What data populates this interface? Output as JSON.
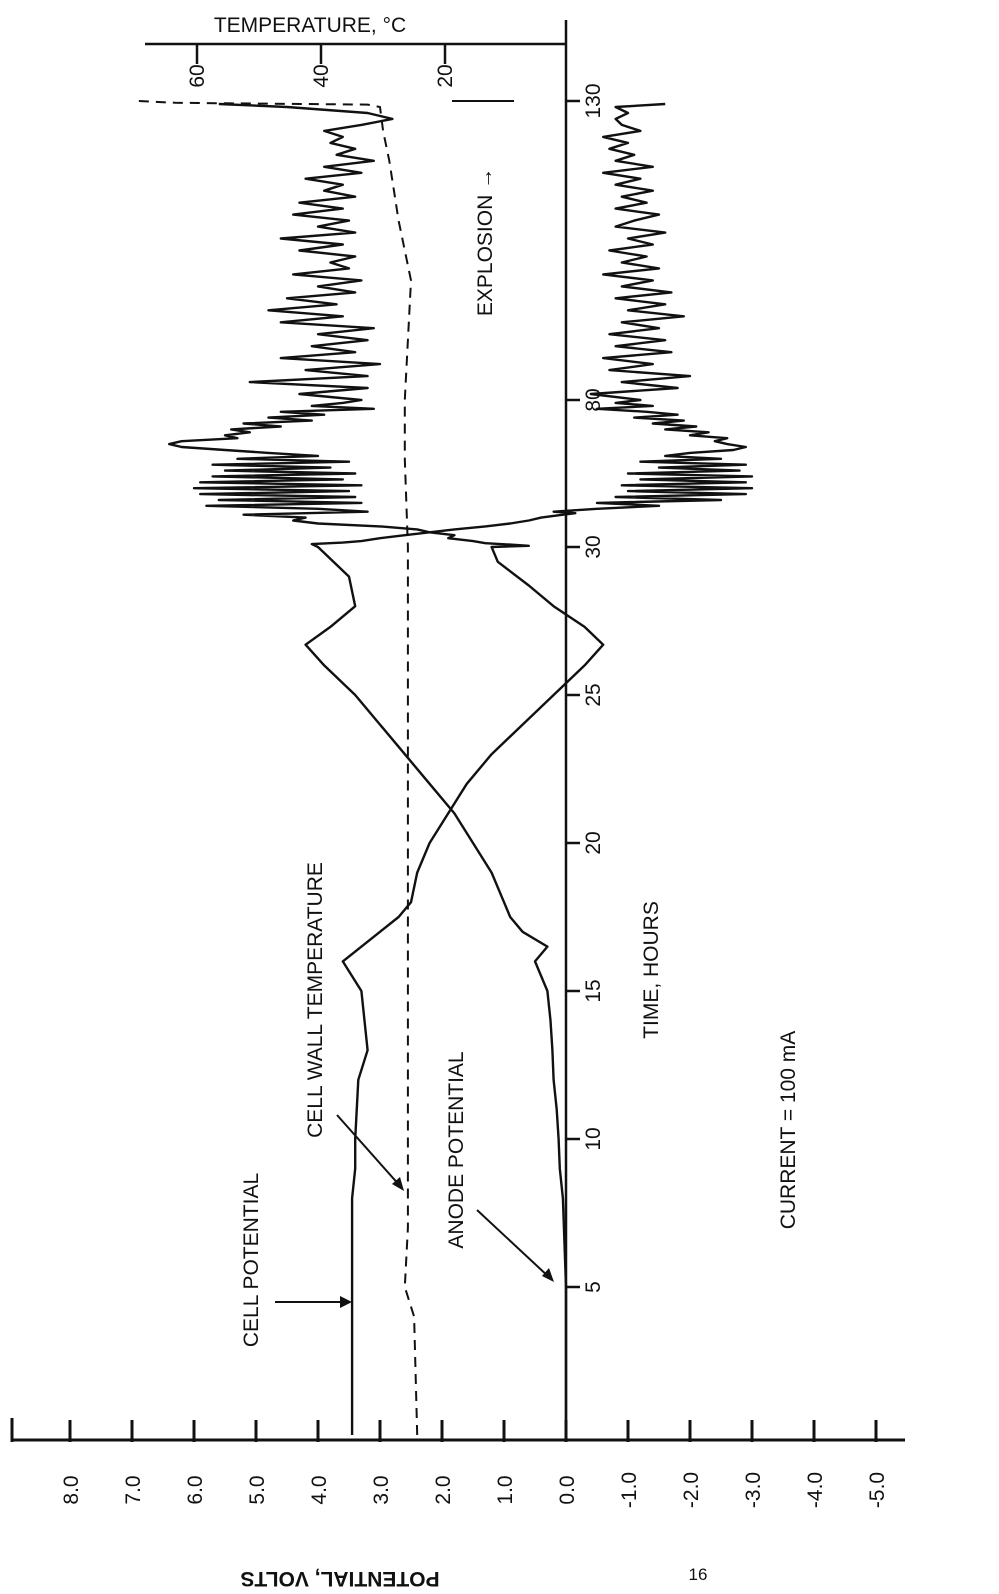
{
  "page_number": "16",
  "chart_data": {
    "type": "line",
    "orientation": "rotated-90-clockwise",
    "current_label": "CURRENT = 100 mA",
    "xlabel": "TIME, HOURS",
    "x_ticks": [
      5,
      10,
      15,
      20,
      25,
      30,
      80,
      130
    ],
    "ylabel": "POTENTIAL, VOLTS",
    "y_ticks": [
      "8.0",
      "7.0",
      "6.0",
      "5.0",
      "4.0",
      "3.0",
      "2.0",
      "1.0",
      "0.0",
      "-1.0",
      "-2.0",
      "-3.0",
      "-4.0",
      "-5.0"
    ],
    "ylim": [
      -5.5,
      9.0
    ],
    "temp_axis": {
      "label": "TEMPERATURE, °C",
      "ticks": [
        "60",
        "40",
        "20"
      ]
    },
    "explosion_label": "EXPLOSION →",
    "annotations": {
      "cell_potential": "CELL POTENTIAL",
      "cell_wall_temperature": "CELL WALL TEMPERATURE",
      "anode_potential": "ANODE POTENTIAL"
    },
    "series": [
      {
        "name": "CELL POTENTIAL",
        "style": "solid",
        "points": [
          [
            0,
            3.45
          ],
          [
            5,
            3.45
          ],
          [
            8,
            3.45
          ],
          [
            9,
            3.4
          ],
          [
            10,
            3.4
          ],
          [
            12,
            3.35
          ],
          [
            13,
            3.2
          ],
          [
            14,
            3.25
          ],
          [
            15,
            3.3
          ],
          [
            16,
            3.6
          ],
          [
            17,
            3.0
          ],
          [
            17.5,
            2.7
          ],
          [
            18,
            2.5
          ],
          [
            19,
            2.4
          ],
          [
            20,
            2.2
          ],
          [
            21,
            1.9
          ],
          [
            22,
            1.6
          ],
          [
            23,
            1.2
          ],
          [
            24,
            0.7
          ],
          [
            25,
            0.2
          ],
          [
            26,
            -0.3
          ],
          [
            26.7,
            -0.6
          ],
          [
            27.3,
            -0.3
          ],
          [
            28,
            0.2
          ],
          [
            28.7,
            0.6
          ],
          [
            29.5,
            1.1
          ],
          [
            30,
            1.2
          ],
          [
            30.4,
            0.6
          ],
          [
            30.8,
            0.9
          ],
          [
            31.3,
            1.3
          ],
          [
            32,
            1.5
          ],
          [
            33,
            1.9
          ],
          [
            34,
            1.8
          ],
          [
            35,
            2.2
          ],
          [
            36,
            2.4
          ],
          [
            37,
            3.0
          ],
          [
            38,
            4.0
          ],
          [
            39,
            4.4
          ],
          [
            40,
            4.2
          ],
          [
            41,
            5.2
          ],
          [
            42,
            3.2
          ],
          [
            43,
            4.0
          ],
          [
            44,
            5.8
          ],
          [
            45,
            3.3
          ],
          [
            46,
            5.6
          ],
          [
            47,
            3.4
          ],
          [
            48,
            5.9
          ],
          [
            49,
            3.5
          ],
          [
            50,
            6.0
          ],
          [
            51,
            3.3
          ],
          [
            52,
            5.9
          ],
          [
            53,
            3.6
          ],
          [
            54,
            5.7
          ],
          [
            55,
            3.4
          ],
          [
            56,
            5.5
          ],
          [
            57,
            3.8
          ],
          [
            58,
            5.7
          ],
          [
            59,
            3.5
          ],
          [
            60,
            5.3
          ],
          [
            61,
            4.0
          ],
          [
            62,
            4.8
          ],
          [
            63,
            5.5
          ],
          [
            64,
            6.2
          ],
          [
            65,
            6.4
          ],
          [
            66,
            6.2
          ],
          [
            67,
            5.3
          ],
          [
            68,
            5.5
          ],
          [
            69,
            5.1
          ],
          [
            70,
            5.4
          ],
          [
            71,
            4.6
          ],
          [
            72,
            5.2
          ],
          [
            73,
            4.1
          ],
          [
            74,
            4.8
          ],
          [
            75,
            3.9
          ],
          [
            76,
            4.6
          ],
          [
            77,
            3.1
          ],
          [
            78,
            4.1
          ],
          [
            79,
            3.6
          ],
          [
            80,
            3.3
          ],
          [
            81,
            4.3
          ],
          [
            82,
            3.2
          ],
          [
            83,
            5.1
          ],
          [
            84,
            3.2
          ],
          [
            85,
            4.2
          ],
          [
            86,
            3.0
          ],
          [
            87,
            4.6
          ],
          [
            88,
            3.4
          ],
          [
            89,
            4.1
          ],
          [
            90,
            3.2
          ],
          [
            91,
            4.0
          ],
          [
            92,
            3.1
          ],
          [
            93,
            4.6
          ],
          [
            94,
            3.6
          ],
          [
            95,
            4.8
          ],
          [
            96,
            3.7
          ],
          [
            97,
            4.5
          ],
          [
            98,
            3.4
          ],
          [
            99,
            4.0
          ],
          [
            100,
            3.3
          ],
          [
            101,
            4.4
          ],
          [
            102,
            3.5
          ],
          [
            103,
            3.8
          ],
          [
            104,
            3.4
          ],
          [
            105,
            4.3
          ],
          [
            106,
            3.6
          ],
          [
            107,
            4.6
          ],
          [
            108,
            3.4
          ],
          [
            109,
            4.0
          ],
          [
            110,
            3.5
          ],
          [
            111,
            4.4
          ],
          [
            112,
            3.6
          ],
          [
            113,
            4.3
          ],
          [
            114,
            3.4
          ],
          [
            115,
            3.9
          ],
          [
            116,
            3.6
          ],
          [
            117,
            4.2
          ],
          [
            118,
            3.3
          ],
          [
            119,
            3.9
          ],
          [
            120,
            3.1
          ],
          [
            121,
            3.7
          ],
          [
            122,
            3.4
          ],
          [
            123,
            3.8
          ],
          [
            124,
            3.6
          ],
          [
            125,
            3.9
          ],
          [
            126,
            3.3
          ],
          [
            127,
            2.8
          ],
          [
            128,
            3.2
          ],
          [
            129,
            4.5
          ],
          [
            129.5,
            5.6
          ]
        ]
      },
      {
        "name": "ANODE POTENTIAL",
        "style": "solid",
        "points": [
          [
            0,
            0.0
          ],
          [
            5,
            0.0
          ],
          [
            8,
            0.05
          ],
          [
            9,
            0.1
          ],
          [
            10,
            0.12
          ],
          [
            11,
            0.15
          ],
          [
            12,
            0.2
          ],
          [
            13,
            0.22
          ],
          [
            14,
            0.25
          ],
          [
            15,
            0.3
          ],
          [
            16,
            0.5
          ],
          [
            16.5,
            0.3
          ],
          [
            17,
            0.7
          ],
          [
            17.5,
            0.9
          ],
          [
            18,
            1.0
          ],
          [
            19,
            1.2
          ],
          [
            20,
            1.5
          ],
          [
            21,
            1.8
          ],
          [
            22,
            2.2
          ],
          [
            23,
            2.6
          ],
          [
            24,
            3.0
          ],
          [
            25,
            3.4
          ],
          [
            26,
            3.9
          ],
          [
            26.7,
            4.2
          ],
          [
            27.3,
            3.8
          ],
          [
            28,
            3.4
          ],
          [
            29,
            3.5
          ],
          [
            30,
            4.0
          ],
          [
            31,
            4.1
          ],
          [
            31.5,
            3.6
          ],
          [
            32,
            3.3
          ],
          [
            33,
            3.0
          ],
          [
            34,
            2.6
          ],
          [
            35,
            2.2
          ],
          [
            36,
            1.8
          ],
          [
            37,
            1.3
          ],
          [
            38,
            0.9
          ],
          [
            39,
            0.6
          ],
          [
            40,
            0.4
          ],
          [
            41,
            0.05
          ],
          [
            41.5,
            -0.15
          ],
          [
            42,
            0.2
          ],
          [
            43,
            -0.5
          ],
          [
            44,
            -1.5
          ],
          [
            45,
            -0.5
          ],
          [
            46,
            -2.5
          ],
          [
            47,
            -0.8
          ],
          [
            48,
            -2.9
          ],
          [
            49,
            -1.0
          ],
          [
            50,
            -3.0
          ],
          [
            51,
            -0.9
          ],
          [
            52,
            -2.9
          ],
          [
            53,
            -1.2
          ],
          [
            54,
            -3.0
          ],
          [
            55,
            -1.0
          ],
          [
            56,
            -2.8
          ],
          [
            57,
            -1.5
          ],
          [
            58,
            -2.9
          ],
          [
            59,
            -1.2
          ],
          [
            60,
            -2.5
          ],
          [
            61,
            -1.6
          ],
          [
            62,
            -2.0
          ],
          [
            63,
            -2.7
          ],
          [
            64,
            -2.9
          ],
          [
            65,
            -2.6
          ],
          [
            66,
            -2.4
          ],
          [
            67,
            -2.6
          ],
          [
            68,
            -2.0
          ],
          [
            69,
            -2.3
          ],
          [
            70,
            -1.6
          ],
          [
            71,
            -2.1
          ],
          [
            72,
            -1.4
          ],
          [
            73,
            -1.9
          ],
          [
            74,
            -1.1
          ],
          [
            75,
            -1.8
          ],
          [
            76,
            -1.3
          ],
          [
            77,
            -0.5
          ],
          [
            78,
            -1.4
          ],
          [
            79,
            -0.8
          ],
          [
            80,
            -1.2
          ],
          [
            81,
            -0.4
          ],
          [
            82,
            -1.8
          ],
          [
            83,
            -0.9
          ],
          [
            84,
            -2.0
          ],
          [
            85,
            -0.7
          ],
          [
            86,
            -1.4
          ],
          [
            87,
            -0.6
          ],
          [
            88,
            -1.7
          ],
          [
            89,
            -0.8
          ],
          [
            90,
            -1.6
          ],
          [
            91,
            -0.7
          ],
          [
            92,
            -1.5
          ],
          [
            93,
            -0.9
          ],
          [
            94,
            -1.9
          ],
          [
            95,
            -1.0
          ],
          [
            96,
            -1.6
          ],
          [
            97,
            -0.8
          ],
          [
            98,
            -1.7
          ],
          [
            99,
            -0.9
          ],
          [
            100,
            -1.4
          ],
          [
            101,
            -0.6
          ],
          [
            102,
            -1.5
          ],
          [
            103,
            -0.9
          ],
          [
            104,
            -1.3
          ],
          [
            105,
            -0.7
          ],
          [
            106,
            -1.4
          ],
          [
            107,
            -1.0
          ],
          [
            108,
            -1.6
          ],
          [
            109,
            -0.8
          ],
          [
            110,
            -1.1
          ],
          [
            111,
            -1.5
          ],
          [
            112,
            -0.8
          ],
          [
            113,
            -1.3
          ],
          [
            114,
            -0.9
          ],
          [
            115,
            -1.4
          ],
          [
            116,
            -0.8
          ],
          [
            117,
            -1.2
          ],
          [
            118,
            -0.6
          ],
          [
            119,
            -1.4
          ],
          [
            120,
            -0.8
          ],
          [
            121,
            -1.1
          ],
          [
            122,
            -0.7
          ],
          [
            123,
            -1.0
          ],
          [
            124,
            -0.6
          ],
          [
            125,
            -1.2
          ],
          [
            126,
            -0.9
          ],
          [
            127,
            -0.8
          ],
          [
            128,
            -1.0
          ],
          [
            129,
            -0.8
          ],
          [
            129.5,
            -1.6
          ]
        ]
      },
      {
        "name": "CELL WALL TEMPERATURE",
        "style": "dashed",
        "points": [
          [
            0,
            2.4
          ],
          [
            4,
            2.45
          ],
          [
            5,
            2.6
          ],
          [
            7,
            2.55
          ],
          [
            10,
            2.55
          ],
          [
            20,
            2.55
          ],
          [
            30,
            2.55
          ],
          [
            60,
            2.6
          ],
          [
            80,
            2.6
          ],
          [
            100,
            2.5
          ],
          [
            110,
            2.7
          ],
          [
            120,
            2.85
          ],
          [
            125,
            2.95
          ],
          [
            129,
            3.0
          ],
          [
            129.4,
            3.2
          ],
          [
            129.7,
            6.3
          ],
          [
            130,
            6.9
          ]
        ]
      }
    ]
  }
}
